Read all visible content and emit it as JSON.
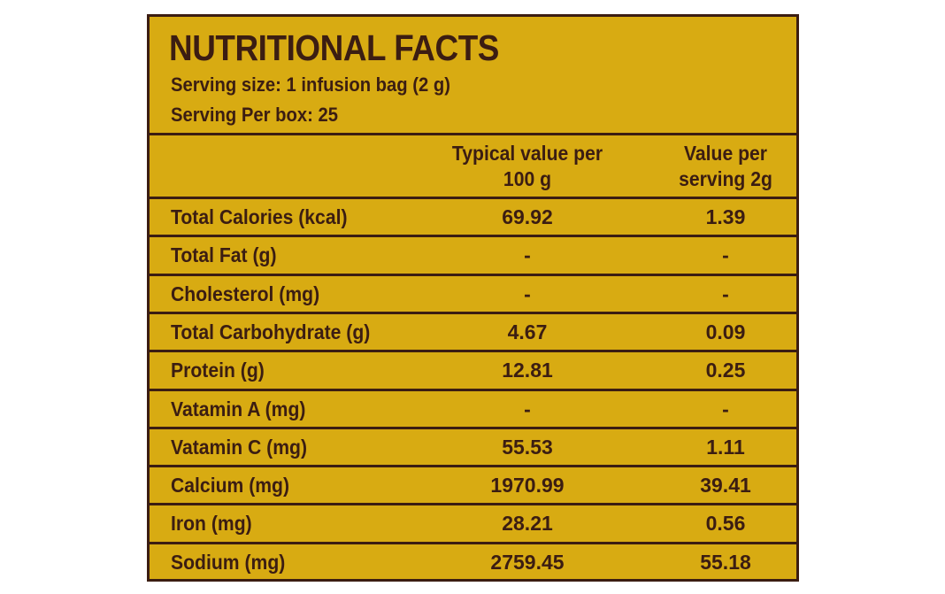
{
  "label": {
    "title": "NUTRITIONAL FACTS",
    "serving_size": "Serving size: 1 infusion bag (2 g)",
    "servings_per_box": "Serving Per box: 25",
    "columns": [
      {
        "line1": "Typical value per",
        "line2": "100 g"
      },
      {
        "line1": "Value per",
        "line2": "serving 2g"
      }
    ],
    "rows": [
      {
        "nutrient": "Total Calories (kcal)",
        "per_100g": "69.92",
        "per_serving": "1.39"
      },
      {
        "nutrient": "Total Fat (g)",
        "per_100g": "-",
        "per_serving": "-"
      },
      {
        "nutrient": "Cholesterol (mg)",
        "per_100g": "-",
        "per_serving": "-"
      },
      {
        "nutrient": "Total Carbohydrate (g)",
        "per_100g": "4.67",
        "per_serving": "0.09"
      },
      {
        "nutrient": "Protein (g)",
        "per_100g": "12.81",
        "per_serving": "0.25"
      },
      {
        "nutrient": "Vatamin A (mg)",
        "per_100g": "-",
        "per_serving": "-"
      },
      {
        "nutrient": "Vatamin C (mg)",
        "per_100g": "55.53",
        "per_serving": "1.11"
      },
      {
        "nutrient": "Calcium (mg)",
        "per_100g": "1970.99",
        "per_serving": "39.41"
      },
      {
        "nutrient": "Iron (mg)",
        "per_100g": "28.21",
        "per_serving": "0.56"
      },
      {
        "nutrient": "Sodium (mg)",
        "per_100g": "2759.45",
        "per_serving": "55.18"
      }
    ]
  }
}
